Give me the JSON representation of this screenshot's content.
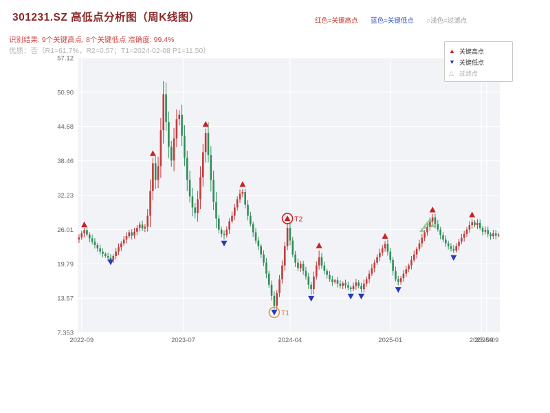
{
  "header": {
    "title": "301231.SZ 高低点分析图（周K线图）",
    "legend_top": [
      {
        "label": "红色=关键高点",
        "color": "#c0392b"
      },
      {
        "label": "蓝色=关键低点",
        "color": "#3a56c4"
      },
      {
        "label": "○浅色=过滤点",
        "color": "#9a9a9a"
      }
    ],
    "result_line": "识别结果: 9个关键高点, 8个关键低点  准确度: 99.4%",
    "quality_line": "优质：否（R1=61.7%，R2=0.57；T1=2024-02-08 P1=11.50）"
  },
  "plot_legend": {
    "items": [
      {
        "symbol": "▲",
        "label": "关键高点",
        "color": "#cc2020",
        "text_color": "#333333"
      },
      {
        "symbol": "▼",
        "label": "关键低点",
        "color": "#2838bd",
        "text_color": "#333333"
      },
      {
        "symbol": "△",
        "label": "过滤点",
        "color": "#9fbf9f",
        "text_color": "#aaaaaa"
      }
    ]
  },
  "chart_data": {
    "type": "candlestick",
    "title": "301231.SZ 高低点分析图（周K线图）",
    "xlabel": "",
    "ylabel": "",
    "ylim": [
      7.353,
      57.12
    ],
    "y_ticks": [
      "57.12",
      "50.90",
      "44.68",
      "38.46",
      "32.23",
      "26.01",
      "19.79",
      "13.57",
      "7.353"
    ],
    "x_ticks": [
      {
        "week": 1,
        "label": "2022-09"
      },
      {
        "week": 39.5,
        "label": "2023-07"
      },
      {
        "week": 80,
        "label": "2024-04"
      },
      {
        "week": 118,
        "label": "2025-01"
      },
      {
        "week": 152.5,
        "label": "2025-09"
      },
      {
        "week": 154.5,
        "label": "2025-09"
      }
    ],
    "first_open": 24.2,
    "open_rule": "previous_close",
    "closes": [
      24.6,
      25.3,
      25.9,
      25.1,
      24.4,
      23.8,
      23.2,
      22.6,
      22.0,
      21.6,
      21.2,
      20.9,
      20.6,
      21.2,
      22.0,
      22.8,
      23.5,
      24.2,
      24.8,
      25.5,
      24.9,
      25.6,
      26.3,
      26.9,
      26.2,
      26.5,
      28.5,
      33.0,
      38.0,
      35.0,
      37.5,
      44.0,
      50.5,
      45.5,
      41.0,
      38.5,
      42.5,
      46.0,
      46.8,
      43.0,
      39.0,
      35.0,
      32.0,
      30.0,
      29.0,
      31.5,
      35.5,
      40.0,
      43.5,
      39.5,
      35.0,
      31.0,
      28.0,
      26.0,
      25.2,
      25.0,
      26.0,
      27.5,
      28.5,
      30.0,
      31.5,
      32.5,
      32.8,
      30.5,
      28.5,
      27.0,
      25.5,
      24.0,
      23.0,
      21.5,
      20.0,
      18.0,
      16.0,
      14.0,
      12.2,
      14.5,
      17.0,
      19.5,
      23.0,
      26.3,
      24.0,
      21.5,
      20.0,
      19.0,
      19.8,
      18.5,
      17.5,
      16.0,
      15.2,
      17.5,
      19.5,
      21.0,
      19.5,
      18.5,
      17.8,
      17.0,
      16.5,
      16.8,
      16.2,
      15.8,
      16.3,
      15.9,
      15.5,
      15.2,
      15.8,
      16.4,
      15.8,
      15.2,
      16.2,
      17.0,
      18.0,
      19.0,
      20.0,
      21.0,
      21.8,
      22.6,
      23.4,
      22.0,
      20.5,
      18.5,
      17.0,
      16.5,
      17.2,
      18.0,
      18.8,
      19.5,
      20.5,
      21.5,
      22.5,
      23.5,
      24.5,
      25.5,
      26.5,
      27.5,
      28.2,
      27.0,
      26.0,
      25.0,
      24.2,
      23.5,
      23.0,
      22.5,
      22.2,
      23.0,
      23.8,
      24.5,
      25.2,
      26.0,
      26.8,
      27.3,
      26.8,
      27.2,
      26.3,
      25.6,
      25.9,
      25.2,
      24.8,
      25.3,
      24.9,
      25.1
    ],
    "wick_overrides": {
      "2": {
        "h": 26.3
      },
      "12": {
        "l": 20.2
      },
      "28": {
        "h": 39.0
      },
      "32": {
        "h": 52.9
      },
      "38": {
        "h": 47.6
      },
      "48": {
        "h": 44.3
      },
      "55": {
        "l": 24.2
      },
      "62": {
        "h": 33.3
      },
      "74": {
        "l": 11.5
      },
      "79": {
        "h": 27.2
      },
      "88": {
        "l": 14.2
      },
      "91": {
        "h": 22.2
      },
      "103": {
        "l": 14.6
      },
      "107": {
        "l": 14.6
      },
      "116": {
        "h": 23.9
      },
      "121": {
        "l": 15.9
      },
      "134": {
        "h": 28.8
      },
      "142": {
        "l": 21.7
      },
      "149": {
        "h": 27.9
      }
    },
    "key_highs": [
      {
        "week": 2,
        "price": 26.9
      },
      {
        "week": 28,
        "price": 39.8
      },
      {
        "week": 48,
        "price": 45.1
      },
      {
        "week": 62,
        "price": 34.2
      },
      {
        "week": 79,
        "price": 28.0,
        "label": "T2",
        "ring": "#cc2525",
        "label_color": "#cc2525"
      },
      {
        "week": 91,
        "price": 23.1
      },
      {
        "week": 116,
        "price": 24.8
      },
      {
        "week": 134,
        "price": 29.6
      },
      {
        "week": 149,
        "price": 28.7
      }
    ],
    "key_lows": [
      {
        "week": 12,
        "price": 20.1
      },
      {
        "week": 55,
        "price": 23.5
      },
      {
        "week": 74,
        "price": 11.0,
        "label": "T1",
        "ring": "#e39a3b",
        "label_color": "#e07b2a"
      },
      {
        "week": 88,
        "price": 13.5
      },
      {
        "week": 103,
        "price": 13.9
      },
      {
        "week": 107,
        "price": 13.9
      },
      {
        "week": 121,
        "price": 15.1
      },
      {
        "week": 142,
        "price": 20.9
      }
    ],
    "filtered_points": [
      {
        "week": 130,
        "price": 25.9
      },
      {
        "week": 131,
        "price": 26.5
      },
      {
        "week": 132,
        "price": 27.1
      },
      {
        "week": 133,
        "price": 27.7
      },
      {
        "week": 134,
        "price": 26.8
      }
    ],
    "colors": {
      "up": "#c23b3b",
      "down": "#2f8e57",
      "key_high": "#cc2020",
      "key_low": "#2838bd",
      "filtered": "#7cbf7c",
      "grid": "#ffffff",
      "plot_bg": "#f2f3f7",
      "tick_text": "#666666"
    }
  }
}
